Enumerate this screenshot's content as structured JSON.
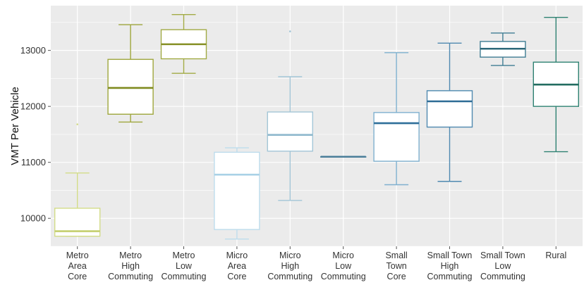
{
  "chart_data": {
    "type": "boxplot",
    "title": "",
    "xlabel": "",
    "ylabel": "VMT Per Vehicle",
    "ylim": [
      9500,
      13800
    ],
    "yticks": [
      10000,
      11000,
      12000,
      13000
    ],
    "ytick_labels": [
      "10000",
      "11000",
      "12000",
      "13000"
    ],
    "grid": true,
    "legend": "none",
    "background": "#ebebeb",
    "gridline_color": "#ffffff",
    "categories": [
      {
        "label_lines": [
          "Metro",
          "Area",
          "Core"
        ],
        "color": "#d3dc88",
        "median_color": "#c4cf6e",
        "whisker_low": 9680,
        "q1": 9680,
        "median": 9770,
        "q3": 10180,
        "whisker_high": 10810,
        "outliers": [
          11680
        ]
      },
      {
        "label_lines": [
          "Metro",
          "High",
          "Commuting"
        ],
        "color": "#9ea63c",
        "median_color": "#7f8a1e",
        "whisker_low": 11720,
        "q1": 11860,
        "median": 12330,
        "q3": 12840,
        "whisker_high": 13460,
        "outliers": []
      },
      {
        "label_lines": [
          "Metro",
          "Low",
          "Commuting"
        ],
        "color": "#a2ab45",
        "median_color": "#858f24",
        "whisker_low": 12590,
        "q1": 12850,
        "median": 13110,
        "q3": 13370,
        "whisker_high": 13640,
        "outliers": []
      },
      {
        "label_lines": [
          "Micro",
          "Area",
          "Core"
        ],
        "color": "#bddcec",
        "median_color": "#a9d1e6",
        "whisker_low": 9630,
        "q1": 9800,
        "median": 10780,
        "q3": 11180,
        "whisker_high": 11260,
        "outliers": []
      },
      {
        "label_lines": [
          "Micro",
          "High",
          "Commuting"
        ],
        "color": "#a3c6d7",
        "median_color": "#8eb8cd",
        "whisker_low": 10320,
        "q1": 11200,
        "median": 11490,
        "q3": 11900,
        "whisker_high": 12530,
        "outliers": [
          13340
        ]
      },
      {
        "label_lines": [
          "Micro",
          "Low",
          "Commuting"
        ],
        "color": "#5a8ea8",
        "median_color": "#4a7e99",
        "whisker_low": 11100,
        "q1": 11100,
        "median": 11100,
        "q3": 11100,
        "whisker_high": 11100,
        "outliers": []
      },
      {
        "label_lines": [
          "Small",
          "Town",
          "Core"
        ],
        "color": "#7fb0cf",
        "median_color": "#2e6f99",
        "whisker_low": 10600,
        "q1": 11020,
        "median": 11700,
        "q3": 11890,
        "whisker_high": 12960,
        "outliers": []
      },
      {
        "label_lines": [
          "Small Town",
          "High",
          "Commuting"
        ],
        "color": "#4f89b0",
        "median_color": "#2d6c95",
        "whisker_low": 10660,
        "q1": 11630,
        "median": 12090,
        "q3": 12280,
        "whisker_high": 13130,
        "outliers": []
      },
      {
        "label_lines": [
          "Small Town",
          "Low",
          "Commuting"
        ],
        "color": "#3f7d93",
        "median_color": "#2d6879",
        "whisker_low": 12730,
        "q1": 12880,
        "median": 13030,
        "q3": 13160,
        "whisker_high": 13310,
        "outliers": []
      },
      {
        "label_lines": [
          "Rural"
        ],
        "color": "#2f8272",
        "median_color": "#236d60",
        "whisker_low": 11190,
        "q1": 12000,
        "median": 12390,
        "q3": 12790,
        "whisker_high": 13590,
        "outliers": []
      }
    ]
  }
}
